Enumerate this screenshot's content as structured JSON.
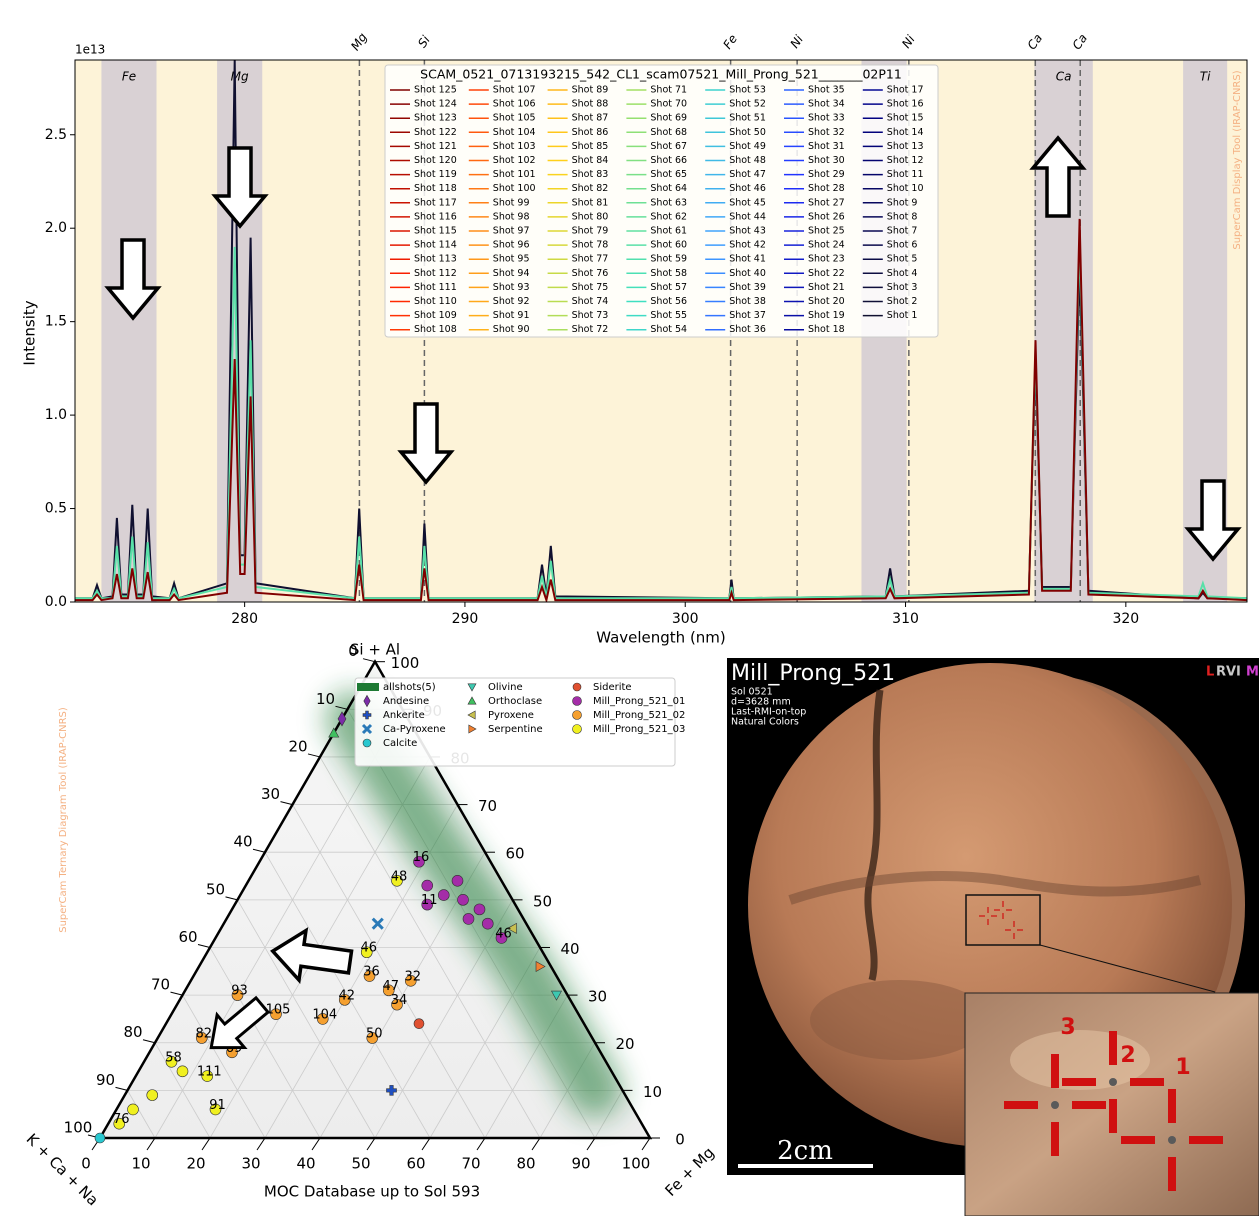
{
  "chart_data": [
    {
      "type": "line",
      "legend_title": "SCAM_0521_0713193215_542_CL1_scam07521_Mill_Prong_521_______02P11",
      "watermark": "SuperCam Display Tool (IRAP-CNRS)",
      "xlabel": "Wavelength (nm)",
      "ylabel": "Intensity",
      "y_offset_label": "1e13",
      "xlim": [
        272.3,
        325.5
      ],
      "ylim": [
        0,
        2.9
      ],
      "xticks": [
        280,
        290,
        300,
        310,
        320
      ],
      "yticks": [
        {
          "value": 0,
          "label": "0.0"
        },
        0.5,
        {
          "value": 1,
          "label": "1.0"
        },
        1.5,
        {
          "value": 2,
          "label": "2.0"
        },
        2.5
      ],
      "background": "#fdf3d8",
      "band_color": "#d9d1d4",
      "bands": [
        {
          "range": [
            273.5,
            276.0
          ],
          "label": "Fe"
        },
        {
          "range": [
            278.75,
            280.8
          ],
          "label": "Mg"
        },
        {
          "range": [
            308.0,
            310.05
          ]
        },
        {
          "range": [
            315.85,
            318.5
          ],
          "label": "Ca"
        },
        {
          "range": [
            322.6,
            324.6
          ],
          "label": "Ti"
        }
      ],
      "lines": [
        {
          "x": 285.21,
          "label": "Mg"
        },
        {
          "x": 288.16,
          "label": "Si"
        },
        {
          "x": 302.06,
          "label": "Fe"
        },
        {
          "x": 305.08,
          "label": "Ni"
        },
        {
          "x": 310.15,
          "label": "Ni"
        },
        {
          "x": 315.89,
          "label": "Ca"
        },
        {
          "x": 317.93,
          "label": "Ca"
        }
      ],
      "x": [
        272.3,
        273.1,
        273.3,
        273.5,
        274.0,
        274.2,
        274.4,
        274.7,
        274.9,
        275.1,
        275.4,
        275.6,
        275.8,
        276.6,
        276.8,
        277.0,
        279.2,
        279.55,
        279.8,
        280.0,
        280.27,
        280.5,
        285.0,
        285.2,
        285.4,
        288.0,
        288.16,
        288.35,
        293.3,
        293.5,
        293.7,
        293.9,
        294.1,
        302.0,
        302.1,
        302.2,
        309.1,
        309.3,
        309.5,
        315.6,
        315.9,
        316.2,
        317.5,
        317.9,
        318.3,
        323.3,
        323.5,
        323.7,
        325.5
      ],
      "series": [
        {
          "name": "Shot 1",
          "values": [
            0.02,
            0.02,
            0.09,
            0.02,
            0.03,
            0.45,
            0.04,
            0.04,
            0.52,
            0.04,
            0.04,
            0.5,
            0.03,
            0.02,
            0.1,
            0.02,
            0.1,
            2.9,
            0.25,
            0.25,
            1.95,
            0.1,
            0.02,
            0.5,
            0.02,
            0.02,
            0.42,
            0.02,
            0.02,
            0.2,
            0.03,
            0.3,
            0.03,
            0.02,
            0.12,
            0.02,
            0.03,
            0.18,
            0.03,
            0.06,
            1.3,
            0.08,
            0.08,
            1.8,
            0.06,
            0.02,
            0.05,
            0.02,
            0.02
          ]
        },
        {
          "name": "Shot 60",
          "values": [
            0.02,
            0.02,
            0.06,
            0.02,
            0.02,
            0.3,
            0.03,
            0.03,
            0.35,
            0.03,
            0.03,
            0.32,
            0.02,
            0.02,
            0.07,
            0.02,
            0.08,
            1.9,
            0.2,
            0.2,
            1.4,
            0.08,
            0.02,
            0.35,
            0.02,
            0.02,
            0.3,
            0.02,
            0.02,
            0.14,
            0.02,
            0.22,
            0.02,
            0.02,
            0.08,
            0.02,
            0.03,
            0.12,
            0.03,
            0.05,
            1.35,
            0.07,
            0.07,
            1.95,
            0.05,
            0.03,
            0.1,
            0.03,
            0.02
          ]
        },
        {
          "name": "Shot 125",
          "values": [
            0.01,
            0.01,
            0.04,
            0.01,
            0.02,
            0.15,
            0.02,
            0.02,
            0.18,
            0.02,
            0.02,
            0.16,
            0.01,
            0.01,
            0.04,
            0.01,
            0.05,
            1.3,
            0.15,
            0.15,
            1.1,
            0.05,
            0.01,
            0.2,
            0.01,
            0.01,
            0.18,
            0.01,
            0.01,
            0.08,
            0.01,
            0.12,
            0.01,
            0.01,
            0.05,
            0.01,
            0.02,
            0.07,
            0.02,
            0.04,
            1.4,
            0.06,
            0.06,
            2.05,
            0.04,
            0.02,
            0.06,
            0.02,
            0.01
          ]
        }
      ],
      "colormap": [
        "#800000",
        "#ff2000",
        "#ff8c1a",
        "#ffd21a",
        "#9be06a",
        "#3fe0c0",
        "#40a0ff",
        "#2030ff",
        "#000080",
        "#101030"
      ],
      "legend": [
        "Shot 125",
        "Shot 124",
        "Shot 123",
        "Shot 122",
        "Shot 121",
        "Shot 120",
        "Shot 119",
        "Shot 118",
        "Shot 117",
        "Shot 116",
        "Shot 115",
        "Shot 114",
        "Shot 113",
        "Shot 112",
        "Shot 111",
        "Shot 110",
        "Shot 109",
        "Shot 108",
        "Shot 107",
        "Shot 106",
        "Shot 105",
        "Shot 104",
        "Shot 103",
        "Shot 102",
        "Shot 101",
        "Shot 100",
        "Shot 99",
        "Shot 98",
        "Shot 97",
        "Shot 96",
        "Shot 95",
        "Shot 94",
        "Shot 93",
        "Shot 92",
        "Shot 91",
        "Shot 90",
        "Shot 89",
        "Shot 88",
        "Shot 87",
        "Shot 86",
        "Shot 85",
        "Shot 84",
        "Shot 83",
        "Shot 82",
        "Shot 81",
        "Shot 80",
        "Shot 79",
        "Shot 78",
        "Shot 77",
        "Shot 76",
        "Shot 75",
        "Shot 74",
        "Shot 73",
        "Shot 72",
        "Shot 71",
        "Shot 70",
        "Shot 69",
        "Shot 68",
        "Shot 67",
        "Shot 66",
        "Shot 65",
        "Shot 64",
        "Shot 63",
        "Shot 62",
        "Shot 61",
        "Shot 60",
        "Shot 59",
        "Shot 58",
        "Shot 57",
        "Shot 56",
        "Shot 55",
        "Shot 54",
        "Shot 53",
        "Shot 52",
        "Shot 51",
        "Shot 50",
        "Shot 49",
        "Shot 48",
        "Shot 47",
        "Shot 46",
        "Shot 45",
        "Shot 44",
        "Shot 43",
        "Shot 42",
        "Shot 41",
        "Shot 40",
        "Shot 39",
        "Shot 38",
        "Shot 37",
        "Shot 36",
        "Shot 35",
        "Shot 34",
        "Shot 33",
        "Shot 32",
        "Shot 31",
        "Shot 30",
        "Shot 29",
        "Shot 28",
        "Shot 27",
        "Shot 26",
        "Shot 25",
        "Shot 24",
        "Shot 23",
        "Shot 22",
        "Shot 21",
        "Shot 20",
        "Shot 19",
        "Shot 18",
        "Shot 17",
        "Shot 16",
        "Shot 15",
        "Shot 14",
        "Shot 13",
        "Shot 12",
        "Shot 11",
        "Shot 10",
        "Shot 9",
        "Shot 8",
        "Shot 7",
        "Shot 6",
        "Shot 5",
        "Shot 4",
        "Shot 3",
        "Shot 2",
        "Shot 1"
      ]
    },
    {
      "type": "ternary",
      "top_label": "Si + Al",
      "left_label": "K + Ca + Na",
      "right_label": "Fe + Mg",
      "xlabel": "MOC Database up to Sol 593",
      "watermark": "SuperCam Ternary Diagram Tool (IRAP-CNRS)",
      "ticks": [
        0,
        10,
        20,
        30,
        40,
        50,
        60,
        70,
        80,
        90,
        100
      ],
      "grid": true,
      "density": {
        "name": "allshots(5)",
        "color": "#1e7a34",
        "path": [
          [
            88,
            10,
            2
          ],
          [
            60,
            8,
            32
          ],
          [
            35,
            5,
            60
          ],
          [
            10,
            5,
            85
          ]
        ]
      },
      "references": [
        {
          "name": "Andesine",
          "marker": "diamond",
          "color": "#7b2ca8",
          "point": [
            88,
            12,
            0
          ]
        },
        {
          "name": "Ankerite",
          "marker": "plus",
          "color": "#1f4fc0",
          "point": [
            10,
            42,
            48
          ]
        },
        {
          "name": "Ca-Pyroxene",
          "marker": "x",
          "color": "#2a7ab8",
          "point": [
            45,
            27,
            28
          ]
        },
        {
          "name": "Calcite",
          "marker": "circle",
          "color": "#28c8d0",
          "point": [
            0,
            100,
            0
          ]
        },
        {
          "name": "Olivine",
          "marker": "tri-down",
          "color": "#3ec8b0",
          "point": [
            30,
            2,
            68
          ]
        },
        {
          "name": "Orthoclase",
          "marker": "tri-up",
          "color": "#40c060",
          "point": [
            85,
            15,
            0
          ]
        },
        {
          "name": "Pyroxene",
          "marker": "tri-left",
          "color": "#c8c050",
          "point": [
            44,
            3,
            53
          ]
        },
        {
          "name": "Serpentine",
          "marker": "tri-right",
          "color": "#f08030",
          "point": [
            36,
            2,
            62
          ]
        },
        {
          "name": "Siderite",
          "marker": "circle",
          "color": "#e05030",
          "point": [
            24,
            30,
            46
          ]
        }
      ],
      "series": [
        {
          "name": "Mill_Prong_521_01",
          "color": "#a42da8",
          "points": [
            [
              58,
              13,
              29
            ],
            [
              49,
              16,
              35
            ],
            [
              51,
              12,
              37
            ],
            [
              50,
              9,
              41
            ],
            [
              48,
              7,
              45
            ],
            [
              42,
              6,
              52
            ],
            [
              54,
              8,
              38
            ],
            [
              45,
              7,
              48
            ],
            [
              46,
              10,
              44
            ],
            [
              53,
              14,
              33
            ]
          ],
          "point_labels": [
            "16",
            "11",
            null,
            null,
            null,
            "46",
            null,
            null,
            null,
            null
          ]
        },
        {
          "name": "Mill_Prong_521_02",
          "color": "#f5a030",
          "points": [
            [
              30,
              60,
              10
            ],
            [
              34,
              34,
              32
            ],
            [
              33,
              27,
              40
            ],
            [
              31,
              32,
              37
            ],
            [
              28,
              32,
              40
            ],
            [
              21,
              40,
              39
            ],
            [
              25,
              47,
              28
            ],
            [
              26,
              55,
              19
            ],
            [
              18,
              67,
              15
            ],
            [
              21,
              71,
              8
            ],
            [
              29,
              41,
              30
            ]
          ],
          "point_labels": [
            "93",
            "36",
            "32",
            "47",
            "34",
            "50",
            "104",
            "105",
            "69",
            "82",
            "42"
          ]
        },
        {
          "name": "Mill_Prong_521_03",
          "color": "#f0f020",
          "points": [
            [
              54,
              19,
              27
            ],
            [
              39,
              32,
              29
            ],
            [
              6,
              91,
              3
            ],
            [
              9,
              86,
              5
            ],
            [
              14,
              78,
              8
            ],
            [
              13,
              74,
              13
            ],
            [
              3,
              95,
              2
            ],
            [
              16,
              79,
              5
            ],
            [
              6,
              76,
              18
            ]
          ],
          "point_labels": [
            "48",
            "46",
            null,
            null,
            null,
            "111",
            "76",
            "58",
            "91"
          ]
        }
      ]
    }
  ],
  "image": {
    "title": "Mill_Prong_521",
    "info": [
      "Sol 0521",
      "d=3628 mm",
      "Last-RMI-on-top",
      "Natural Colors"
    ],
    "logo": [
      {
        "text": "L",
        "color": "#e02020"
      },
      {
        "text": "R",
        "color": "#c8c8c8"
      },
      {
        "text": "V",
        "color": "#c8c8c8"
      },
      {
        "text": "I",
        "color": "#c8c8c8"
      },
      {
        "text": "M",
        "color": "#d040d0"
      }
    ],
    "scale_label": "2cm",
    "spot_labels": [
      "3",
      "2",
      "1"
    ]
  }
}
